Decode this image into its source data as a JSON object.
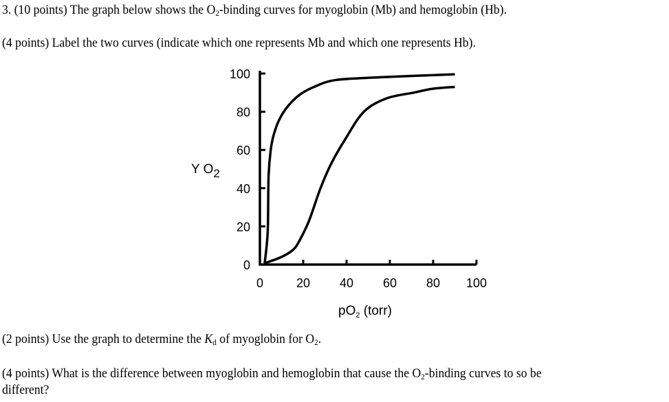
{
  "question": {
    "header": {
      "pre": "3. (10 points) The graph below shows the O",
      "sub": "2",
      "post": "-binding curves for myoglobin (Mb) and hemoglobin (Hb)."
    },
    "part_a": "(4 points) Label the two curves (indicate which one represents Mb and which one represents Hb).",
    "part_b": {
      "pre": "(2 points) Use the graph to determine the ",
      "k": "K",
      "ksub": "d",
      "mid": " of myoglobin for O",
      "sub": "2",
      "post": "."
    },
    "part_c": {
      "pre": "(4 points) What is the difference between myoglobin and hemoglobin that cause the O",
      "sub": "2",
      "post": "-binding curves to so be",
      "line2": "different?"
    }
  },
  "chart_data": {
    "type": "line",
    "title": "",
    "xlabel": {
      "main": "pO",
      "sub": "2",
      "rest": " (torr)"
    },
    "ylabel": {
      "main": "Y O",
      "sub": "2"
    },
    "xlim": [
      0,
      100
    ],
    "ylim": [
      0,
      100
    ],
    "xticks": [
      "0",
      "20",
      "40",
      "60",
      "80",
      "100"
    ],
    "yticks": [
      "0",
      "20",
      "40",
      "60",
      "80",
      "100"
    ],
    "grid": false,
    "line_color": "#000000",
    "series": [
      {
        "x": [
          2.2,
          3.6,
          4,
          5,
          6.4,
          9,
          13,
          18.5,
          25,
          35,
          55,
          90
        ],
        "y": [
          0.6,
          17,
          46,
          60,
          68,
          76,
          83,
          89,
          93,
          96.6,
          98,
          99.6
        ]
      },
      {
        "x": [
          2,
          10,
          15.4,
          18.5,
          22.7,
          28,
          33,
          39.6,
          48,
          58.5,
          71,
          79.6,
          90
        ],
        "y": [
          0.6,
          4,
          7.8,
          13,
          23,
          40,
          53,
          66,
          80,
          87,
          90,
          92,
          93
        ]
      }
    ]
  }
}
